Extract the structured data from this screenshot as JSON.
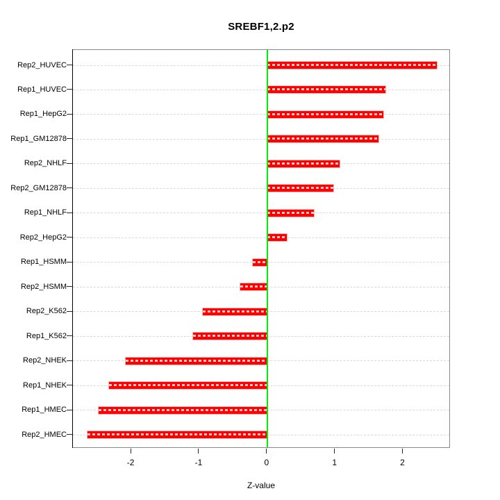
{
  "chart_data": {
    "type": "bar",
    "orientation": "horizontal",
    "title": "SREBF1,2.p2",
    "xlabel": "Z-value",
    "ylabel": "",
    "categories": [
      "Rep2_HUVEC",
      "Rep1_HUVEC",
      "Rep1_HepG2",
      "Rep1_GM12878",
      "Rep2_NHLF",
      "Rep2_GM12878",
      "Rep1_NHLF",
      "Rep2_HepG2",
      "Rep1_HSMM",
      "Rep2_HSMM",
      "Rep2_K562",
      "Rep1_K562",
      "Rep2_NHEK",
      "Rep1_NHEK",
      "Rep1_HMEC",
      "Rep2_HMEC"
    ],
    "values": [
      2.5,
      1.74,
      1.71,
      1.64,
      1.06,
      0.97,
      0.69,
      0.29,
      -0.21,
      -0.4,
      -0.95,
      -1.09,
      -2.08,
      -2.33,
      -2.48,
      -2.65
    ],
    "x_ticks": [
      "-2",
      "-1",
      "0",
      "1",
      "2"
    ],
    "x_tick_values": [
      -2,
      -1,
      0,
      1,
      2
    ],
    "xlim": [
      -2.86,
      2.7
    ],
    "grid": "horizontal-dashed-per-category",
    "legend": "none",
    "colors": {
      "bar": "#ff0000",
      "zero_line": "#00ee00",
      "gridline": "#d8d8d8",
      "box_border": "#888888",
      "axis": "#000000",
      "background": "#ffffff"
    }
  }
}
